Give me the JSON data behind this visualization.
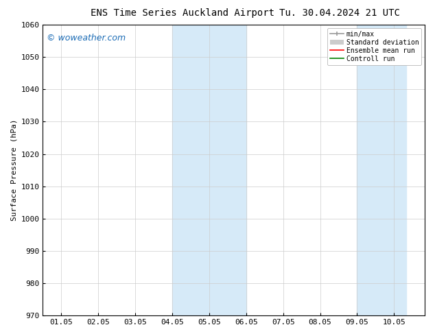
{
  "title_left": "ENS Time Series Auckland Airport",
  "title_right": "Tu. 30.04.2024 21 UTC",
  "ylabel": "Surface Pressure (hPa)",
  "ylim": [
    970,
    1060
  ],
  "yticks": [
    970,
    980,
    990,
    1000,
    1010,
    1020,
    1030,
    1040,
    1050,
    1060
  ],
  "xtick_labels": [
    "01.05",
    "02.05",
    "03.05",
    "04.05",
    "05.05",
    "06.05",
    "07.05",
    "08.05",
    "09.05",
    "10.05"
  ],
  "xtick_positions": [
    0,
    1,
    2,
    3,
    4,
    5,
    6,
    7,
    8,
    9
  ],
  "xlim": [
    -0.5,
    9.83
  ],
  "shaded_regions": [
    {
      "xstart": 3.0,
      "xend": 4.0,
      "color": "#daeaf6"
    },
    {
      "xstart": 4.5,
      "xend": 5.5,
      "color": "#daeaf6"
    },
    {
      "xstart": 8.5,
      "xend": 9.0,
      "color": "#daeaf6"
    },
    {
      "xstart": 9.0,
      "xend": 9.5,
      "color": "#daeaf6"
    }
  ],
  "watermark": "© woweather.com",
  "watermark_color": "#1a6bb5",
  "bg_color": "#ffffff",
  "spine_color": "#000000",
  "tick_color": "#000000",
  "font_family": "monospace",
  "title_fontsize": 10,
  "axis_label_fontsize": 8,
  "tick_fontsize": 8,
  "legend_fontsize": 7,
  "watermark_fontsize": 9
}
